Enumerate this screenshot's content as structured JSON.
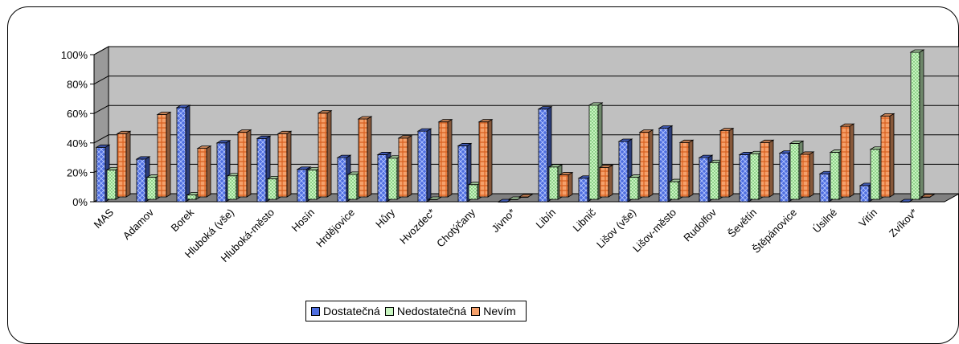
{
  "chart_data": {
    "type": "bar",
    "style": "3d-clustered",
    "yticks": [
      "0%",
      "20%",
      "40%",
      "60%",
      "80%",
      "100%"
    ],
    "ylim": [
      0,
      100
    ],
    "legend_position": "bottom",
    "categories": [
      "MAS",
      "Adamov",
      "Borek",
      "Hluboká (vše)",
      "Hluboká-město",
      "Hosín",
      "Hrdějovice",
      "Hůry",
      "Hvozdec*",
      "Chotýčany",
      "Jivno*",
      "Libín",
      "Libnič",
      "Lišov (vše)",
      "Lišov-město",
      "Rudolfov",
      "Ševětín",
      "Štěpánovice",
      "Úsilné",
      "Vitín",
      "Zvíkov*"
    ],
    "series": [
      {
        "name": "Dostatečná",
        "color": "#4f6fe0",
        "values": [
          37,
          29,
          64,
          40,
          43,
          22,
          30,
          32,
          48,
          38,
          0,
          63,
          16,
          41,
          50,
          30,
          32,
          33,
          19,
          11,
          0
        ]
      },
      {
        "name": "Nedostatečná",
        "color": "#c8f5c0",
        "values": [
          20,
          15,
          3,
          16,
          14,
          20,
          17,
          28,
          0,
          10,
          0,
          22,
          64,
          15,
          12,
          25,
          31,
          38,
          32,
          34,
          100
        ]
      },
      {
        "name": "Nevím",
        "color": "#f5a06a",
        "values": [
          43,
          56,
          33,
          44,
          43,
          57,
          53,
          40,
          51,
          51,
          0,
          15,
          20,
          44,
          37,
          45,
          37,
          29,
          48,
          55,
          0
        ]
      }
    ]
  }
}
